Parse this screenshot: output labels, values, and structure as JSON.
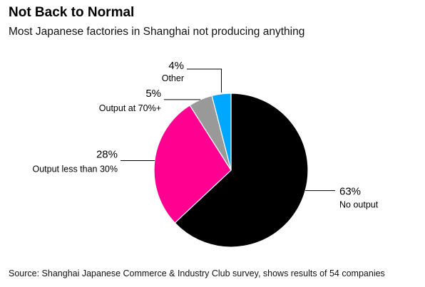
{
  "chart_data": {
    "type": "pie",
    "title": "Not Back to Normal",
    "subtitle": "Most Japanese factories in Shanghai not producing anything",
    "source": "Source: Shanghai Japanese Commerce & Industry Club survey, shows results of 54 companies",
    "slices": [
      {
        "label": "No output",
        "value": 63,
        "value_label": "63%",
        "color": "#000000"
      },
      {
        "label": "Output less than 30%",
        "value": 28,
        "value_label": "28%",
        "color": "#ff0090"
      },
      {
        "label": "Output at 70%+",
        "value": 5,
        "value_label": "5%",
        "color": "#999999"
      },
      {
        "label": "Other",
        "value": 4,
        "value_label": "4%",
        "color": "#00a7ff"
      }
    ]
  }
}
